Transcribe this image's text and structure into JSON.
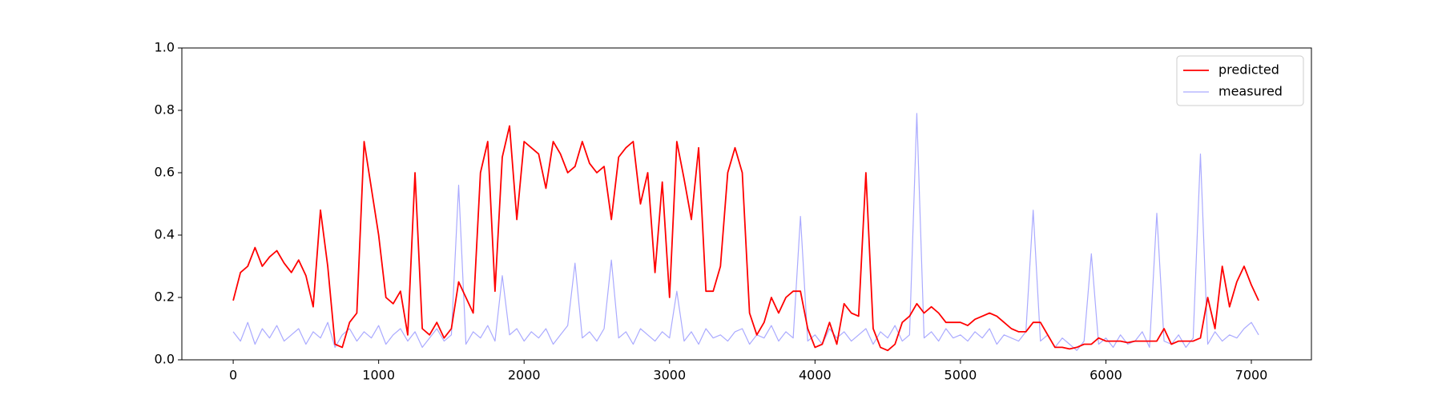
{
  "chart_data": {
    "type": "line",
    "x": [
      0,
      50,
      100,
      150,
      200,
      250,
      300,
      350,
      400,
      450,
      500,
      550,
      600,
      650,
      700,
      750,
      800,
      850,
      900,
      950,
      1000,
      1050,
      1100,
      1150,
      1200,
      1250,
      1300,
      1350,
      1400,
      1450,
      1500,
      1550,
      1600,
      1650,
      1700,
      1750,
      1800,
      1850,
      1900,
      1950,
      2000,
      2050,
      2100,
      2150,
      2200,
      2250,
      2300,
      2350,
      2400,
      2450,
      2500,
      2550,
      2600,
      2650,
      2700,
      2750,
      2800,
      2850,
      2900,
      2950,
      3000,
      3050,
      3100,
      3150,
      3200,
      3250,
      3300,
      3350,
      3400,
      3450,
      3500,
      3550,
      3600,
      3650,
      3700,
      3750,
      3800,
      3850,
      3900,
      3950,
      4000,
      4050,
      4100,
      4150,
      4200,
      4250,
      4300,
      4350,
      4400,
      4450,
      4500,
      4550,
      4600,
      4650,
      4700,
      4750,
      4800,
      4850,
      4900,
      4950,
      5000,
      5050,
      5100,
      5150,
      5200,
      5250,
      5300,
      5350,
      5400,
      5450,
      5500,
      5550,
      5600,
      5650,
      5700,
      5750,
      5800,
      5850,
      5900,
      5950,
      6000,
      6050,
      6100,
      6150,
      6200,
      6250,
      6300,
      6350,
      6400,
      6450,
      6500,
      6550,
      6600,
      6650,
      6700,
      6750,
      6800,
      6850,
      6900,
      6950,
      7000,
      7050
    ],
    "series": [
      {
        "name": "predicted",
        "color": "#ff0000",
        "values": [
          0.19,
          0.28,
          0.3,
          0.36,
          0.3,
          0.33,
          0.35,
          0.31,
          0.28,
          0.32,
          0.27,
          0.17,
          0.48,
          0.3,
          0.05,
          0.04,
          0.12,
          0.15,
          0.7,
          0.55,
          0.4,
          0.2,
          0.18,
          0.22,
          0.08,
          0.6,
          0.1,
          0.08,
          0.12,
          0.07,
          0.1,
          0.25,
          0.2,
          0.15,
          0.6,
          0.7,
          0.22,
          0.65,
          0.75,
          0.45,
          0.7,
          0.68,
          0.66,
          0.55,
          0.7,
          0.66,
          0.6,
          0.62,
          0.7,
          0.63,
          0.6,
          0.62,
          0.45,
          0.65,
          0.68,
          0.7,
          0.5,
          0.6,
          0.28,
          0.57,
          0.2,
          0.7,
          0.58,
          0.45,
          0.68,
          0.22,
          0.22,
          0.3,
          0.6,
          0.68,
          0.6,
          0.15,
          0.08,
          0.12,
          0.2,
          0.15,
          0.2,
          0.22,
          0.22,
          0.1,
          0.04,
          0.05,
          0.12,
          0.05,
          0.18,
          0.15,
          0.14,
          0.6,
          0.1,
          0.04,
          0.03,
          0.05,
          0.12,
          0.14,
          0.18,
          0.15,
          0.17,
          0.15,
          0.12,
          0.12,
          0.12,
          0.11,
          0.13,
          0.14,
          0.15,
          0.14,
          0.12,
          0.1,
          0.09,
          0.09,
          0.12,
          0.12,
          0.08,
          0.04,
          0.04,
          0.035,
          0.04,
          0.05,
          0.05,
          0.07,
          0.06,
          0.06,
          0.06,
          0.055,
          0.06,
          0.06,
          0.06,
          0.06,
          0.1,
          0.05,
          0.06,
          0.06,
          0.06,
          0.07,
          0.2,
          0.1,
          0.3,
          0.17,
          0.25,
          0.3,
          0.24,
          0.19
        ]
      },
      {
        "name": "measured",
        "color": "#aaaaff",
        "values": [
          0.09,
          0.06,
          0.12,
          0.05,
          0.1,
          0.07,
          0.11,
          0.06,
          0.08,
          0.1,
          0.05,
          0.09,
          0.07,
          0.12,
          0.04,
          0.08,
          0.1,
          0.06,
          0.09,
          0.07,
          0.11,
          0.05,
          0.08,
          0.1,
          0.06,
          0.09,
          0.04,
          0.07,
          0.1,
          0.06,
          0.08,
          0.56,
          0.05,
          0.09,
          0.07,
          0.11,
          0.06,
          0.27,
          0.08,
          0.1,
          0.06,
          0.09,
          0.07,
          0.1,
          0.05,
          0.08,
          0.11,
          0.31,
          0.07,
          0.09,
          0.06,
          0.1,
          0.32,
          0.07,
          0.09,
          0.05,
          0.1,
          0.08,
          0.06,
          0.09,
          0.07,
          0.22,
          0.06,
          0.09,
          0.05,
          0.1,
          0.07,
          0.08,
          0.06,
          0.09,
          0.1,
          0.05,
          0.08,
          0.07,
          0.11,
          0.06,
          0.09,
          0.07,
          0.46,
          0.06,
          0.08,
          0.05,
          0.1,
          0.07,
          0.09,
          0.06,
          0.08,
          0.1,
          0.05,
          0.09,
          0.07,
          0.11,
          0.06,
          0.08,
          0.79,
          0.07,
          0.09,
          0.06,
          0.1,
          0.07,
          0.08,
          0.06,
          0.09,
          0.07,
          0.1,
          0.05,
          0.08,
          0.07,
          0.06,
          0.09,
          0.48,
          0.06,
          0.08,
          0.04,
          0.07,
          0.05,
          0.03,
          0.06,
          0.34,
          0.05,
          0.07,
          0.04,
          0.08,
          0.05,
          0.06,
          0.09,
          0.04,
          0.47,
          0.06,
          0.05,
          0.08,
          0.04,
          0.07,
          0.66,
          0.05,
          0.09,
          0.06,
          0.08,
          0.07,
          0.1,
          0.12,
          0.08
        ]
      }
    ],
    "xlim": [
      -353,
      7413
    ],
    "xticks": [
      0,
      1000,
      2000,
      3000,
      4000,
      5000,
      6000,
      7000
    ],
    "ylim": [
      0,
      1
    ],
    "yticks": [
      {
        "value": 0,
        "label": "0.0"
      },
      0.2,
      0.4,
      0.6,
      0.8,
      {
        "value": 1,
        "label": "1.0"
      }
    ],
    "legend": "upper right"
  }
}
